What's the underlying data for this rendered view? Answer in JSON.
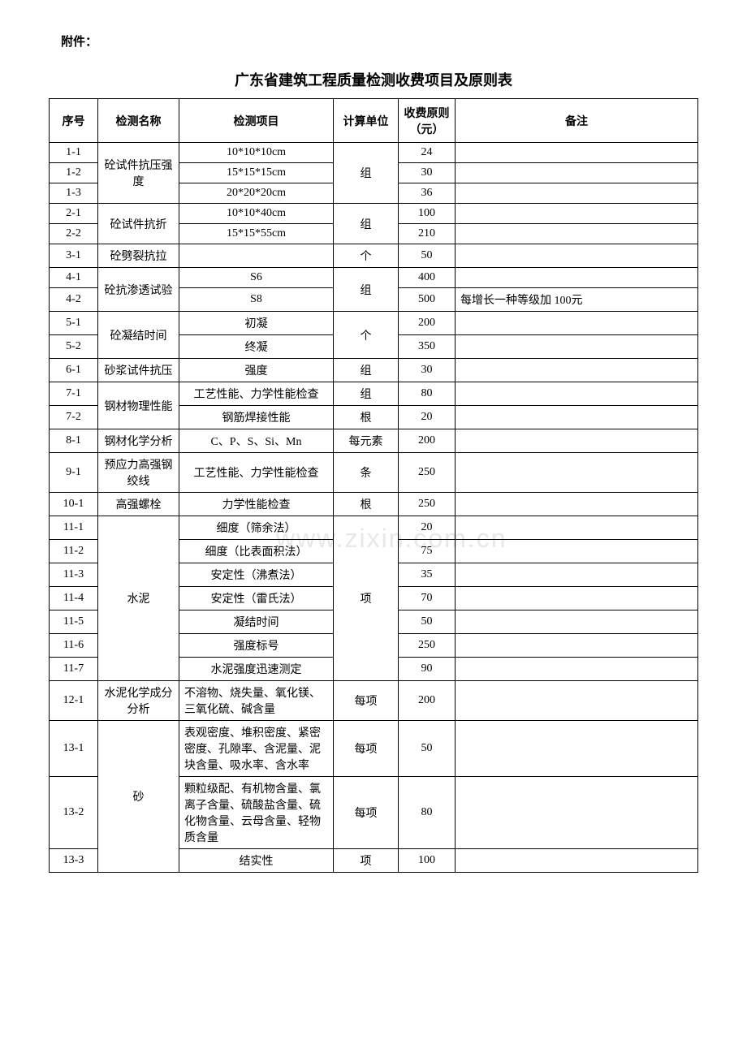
{
  "attachment_label": "附件：",
  "title": "广东省建筑工程质量检测收费项目及原则表",
  "watermark": "www.zixin.com.cn",
  "headers": {
    "seq": "序号",
    "name": "检测名称",
    "item": "检测项目",
    "unit": "计算单位",
    "fee": "收费原则（元）",
    "remark": "备注"
  },
  "rows": [
    {
      "seq": "1-1",
      "name": "砼试件抗压强度",
      "item": "10*10*10cm",
      "unit": "组",
      "fee": "24",
      "remark": "",
      "name_span": 3,
      "unit_span": 3
    },
    {
      "seq": "1-2",
      "item": "15*15*15cm",
      "fee": "30",
      "remark": ""
    },
    {
      "seq": "1-3",
      "item": "20*20*20cm",
      "fee": "36",
      "remark": ""
    },
    {
      "seq": "2-1",
      "name": "砼试件抗折",
      "item": "10*10*40cm",
      "unit": "组",
      "fee": "100",
      "remark": "",
      "name_span": 2,
      "unit_span": 2
    },
    {
      "seq": "2-2",
      "item": "15*15*55cm",
      "fee": "210",
      "remark": ""
    },
    {
      "seq": "3-1",
      "name": "砼劈裂抗拉",
      "item": "",
      "unit": "个",
      "fee": "50",
      "remark": "",
      "name_span": 1,
      "unit_span": 1
    },
    {
      "seq": "4-1",
      "name": "砼抗渗透试验",
      "item": "S6",
      "unit": "组",
      "fee": "400",
      "remark": "",
      "name_span": 2,
      "unit_span": 2
    },
    {
      "seq": "4-2",
      "item": "S8",
      "fee": "500",
      "remark": "每增长一种等级加 100元"
    },
    {
      "seq": "5-1",
      "name": "砼凝结时间",
      "item": "初凝",
      "unit": "个",
      "fee": "200",
      "remark": "",
      "name_span": 2,
      "unit_span": 2
    },
    {
      "seq": "5-2",
      "item": "终凝",
      "fee": "350",
      "remark": ""
    },
    {
      "seq": "6-1",
      "name": "砂浆试件抗压",
      "item": "强度",
      "unit": "组",
      "fee": "30",
      "remark": "",
      "name_span": 1,
      "unit_span": 1
    },
    {
      "seq": "7-1",
      "name": "钢材物理性能",
      "item": "工艺性能、力学性能检查",
      "unit": "组",
      "fee": "80",
      "remark": "",
      "name_span": 2
    },
    {
      "seq": "7-2",
      "item": "钢筋焊接性能",
      "unit": "根",
      "fee": "20",
      "remark": ""
    },
    {
      "seq": "8-1",
      "name": "钢材化学分析",
      "item": "C、P、S、Si、Mn",
      "unit": "每元素",
      "fee": "200",
      "remark": "",
      "name_span": 1,
      "unit_span": 1
    },
    {
      "seq": "9-1",
      "name": "预应力高强钢绞线",
      "item": "工艺性能、力学性能检查",
      "unit": "条",
      "fee": "250",
      "remark": "",
      "name_span": 1,
      "unit_span": 1
    },
    {
      "seq": "10-1",
      "name": "高强螺栓",
      "item": "力学性能检查",
      "unit": "根",
      "fee": "250",
      "remark": "",
      "name_span": 1,
      "unit_span": 1
    },
    {
      "seq": "11-1",
      "name": "水泥",
      "item": "细度（筛余法）",
      "unit": "项",
      "fee": "20",
      "remark": "",
      "name_span": 7,
      "unit_span": 7
    },
    {
      "seq": "11-2",
      "item": "细度（比表面积法）",
      "fee": "75",
      "remark": ""
    },
    {
      "seq": "11-3",
      "item": "安定性（沸煮法）",
      "fee": "35",
      "remark": ""
    },
    {
      "seq": "11-4",
      "item": "安定性（雷氏法）",
      "fee": "70",
      "remark": ""
    },
    {
      "seq": "11-5",
      "item": "凝结时间",
      "fee": "50",
      "remark": ""
    },
    {
      "seq": "11-6",
      "item": "强度标号",
      "fee": "250",
      "remark": ""
    },
    {
      "seq": "11-7",
      "item": "水泥强度迅速测定",
      "fee": "90",
      "remark": ""
    },
    {
      "seq": "12-1",
      "name": "水泥化学成分分析",
      "item": "不溶物、烧失量、氧化镁、三氧化硫、碱含量",
      "unit": "每项",
      "fee": "200",
      "remark": "",
      "name_span": 1,
      "unit_span": 1
    },
    {
      "seq": "13-1",
      "name": "砂",
      "item": "表观密度、堆积密度、紧密密度、孔隙率、含泥量、泥块含量、吸水率、含水率",
      "unit": "每项",
      "fee": "50",
      "remark": "",
      "name_span": 3
    },
    {
      "seq": "13-2",
      "item": "颗粒级配、有机物含量、氯离子含量、硫酸盐含量、硫化物含量、云母含量、轻物质含量",
      "unit": "每项",
      "fee": "80",
      "remark": ""
    },
    {
      "seq": "13-3",
      "item": "结实性",
      "unit": "项",
      "fee": "100",
      "remark": ""
    }
  ],
  "item_align": {
    "left_rows": [
      "12-1",
      "13-1",
      "13-2"
    ]
  }
}
